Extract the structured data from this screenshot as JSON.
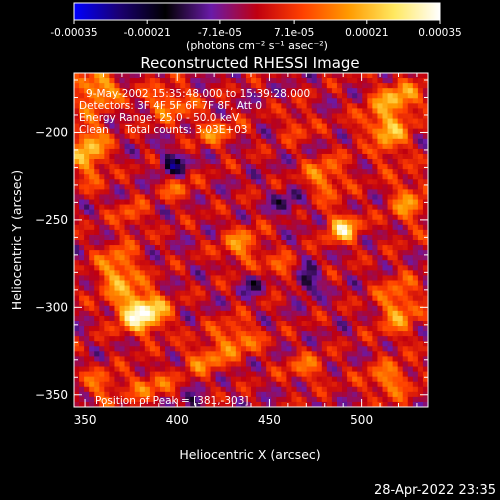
{
  "chart_data": {
    "type": "heatmap",
    "title": "Reconstructed RHESSI Image",
    "xlabel": "Heliocentric X (arcsec)",
    "ylabel": "Heliocentric Y (arcsec)",
    "xlim": [
      344,
      536
    ],
    "ylim": [
      -357,
      -166
    ],
    "x_ticks": [
      "350",
      "400",
      "450",
      "500"
    ],
    "x_tick_values": [
      350,
      400,
      450,
      500
    ],
    "y_ticks": [
      "-200",
      "-250",
      "-300",
      "-350"
    ],
    "y_tick_values": [
      -200,
      -250,
      -300,
      -350
    ],
    "colorbar": {
      "ticks": [
        "-0.00035",
        "-0.00021",
        "-7.1e-05",
        "7.1e-05",
        "0.00021",
        "0.00035"
      ],
      "tick_values": [
        -0.00035,
        -0.00021,
        -7.1e-05,
        7.1e-05,
        0.00021,
        0.00035
      ],
      "range": [
        -0.00035,
        0.00035
      ],
      "label": "(photons cm⁻² s⁻¹ asec⁻²)",
      "colormap": [
        "#0000ff",
        "#1a0070",
        "#000000",
        "#6a1aa8",
        "#c00010",
        "#ff4000",
        "#ff9a00",
        "#ffe860",
        "#ffffff"
      ]
    },
    "grid": false,
    "annotations": [
      "9-May-2002 15:35:48.000 to 15:39:28.000",
      "Detectors: 3F 4F 5F 6F 7F 8F, Att 0",
      "Energy Range: 25.0 - 50.0 keV",
      "Clean     Total counts: 3.03E+03"
    ],
    "peak_label": "Position of Peak = [381,-303]",
    "peak": [
      381,
      -303
    ],
    "sources": [
      {
        "x": 381,
        "y": -303,
        "amp": 0.00035,
        "sx": 9,
        "sy": 8
      },
      {
        "x": 368,
        "y": -280,
        "amp": 0.0002,
        "sx": 8,
        "sy": 10
      },
      {
        "x": 357,
        "y": -175,
        "amp": 0.00022,
        "sx": 8,
        "sy": 7
      },
      {
        "x": 352,
        "y": -210,
        "amp": 0.00022,
        "sx": 7,
        "sy": 12
      },
      {
        "x": 395,
        "y": -183,
        "amp": 0.00015,
        "sx": 10,
        "sy": 7
      },
      {
        "x": 420,
        "y": -200,
        "amp": 0.00013,
        "sx": 9,
        "sy": 6
      },
      {
        "x": 480,
        "y": -226,
        "amp": 0.00016,
        "sx": 8,
        "sy": 8
      },
      {
        "x": 490,
        "y": -255,
        "amp": 0.00026,
        "sx": 6,
        "sy": 6
      },
      {
        "x": 512,
        "y": -200,
        "amp": 0.00022,
        "sx": 9,
        "sy": 10
      },
      {
        "x": 520,
        "y": -180,
        "amp": 0.00018,
        "sx": 9,
        "sy": 7
      },
      {
        "x": 525,
        "y": -240,
        "amp": 0.00015,
        "sx": 7,
        "sy": 10
      },
      {
        "x": 520,
        "y": -300,
        "amp": 0.00017,
        "sx": 8,
        "sy": 12
      },
      {
        "x": 515,
        "y": -342,
        "amp": 0.00016,
        "sx": 9,
        "sy": 7
      },
      {
        "x": 435,
        "y": -265,
        "amp": 0.00015,
        "sx": 8,
        "sy": 8
      },
      {
        "x": 455,
        "y": -280,
        "amp": 0.00013,
        "sx": 7,
        "sy": 6
      },
      {
        "x": 432,
        "y": -318,
        "amp": 0.00016,
        "sx": 9,
        "sy": 7
      },
      {
        "x": 415,
        "y": -330,
        "amp": 0.00014,
        "sx": 8,
        "sy": 6
      },
      {
        "x": 385,
        "y": -345,
        "amp": 0.00013,
        "sx": 10,
        "sy": 6
      },
      {
        "x": 358,
        "y": -345,
        "amp": 0.00012,
        "sx": 7,
        "sy": 7
      },
      {
        "x": 470,
        "y": -335,
        "amp": 0.00012,
        "sx": 8,
        "sy": 6
      },
      {
        "x": 400,
        "y": -232,
        "amp": 0.0001,
        "sx": 7,
        "sy": 6
      },
      {
        "x": 465,
        "y": -195,
        "amp": 0.0001,
        "sx": 6,
        "sy": 6
      },
      {
        "x": 375,
        "y": -248,
        "amp": 0.00011,
        "sx": 6,
        "sy": 6
      },
      {
        "x": 398,
        "y": -218,
        "amp": -0.0002,
        "sx": 5,
        "sy": 5
      },
      {
        "x": 443,
        "y": -285,
        "amp": -0.00014,
        "sx": 5,
        "sy": 5
      },
      {
        "x": 470,
        "y": -285,
        "amp": -0.00018,
        "sx": 5,
        "sy": 5
      },
      {
        "x": 505,
        "y": -205,
        "amp": -0.00014,
        "sx": 4,
        "sy": 4
      },
      {
        "x": 460,
        "y": -240,
        "amp": -0.0001,
        "sx": 6,
        "sy": 6
      },
      {
        "x": 408,
        "y": -355,
        "amp": -0.00012,
        "sx": 5,
        "sy": 4
      }
    ]
  },
  "footer": {
    "timestamp": "28-Apr-2022 23:35"
  }
}
